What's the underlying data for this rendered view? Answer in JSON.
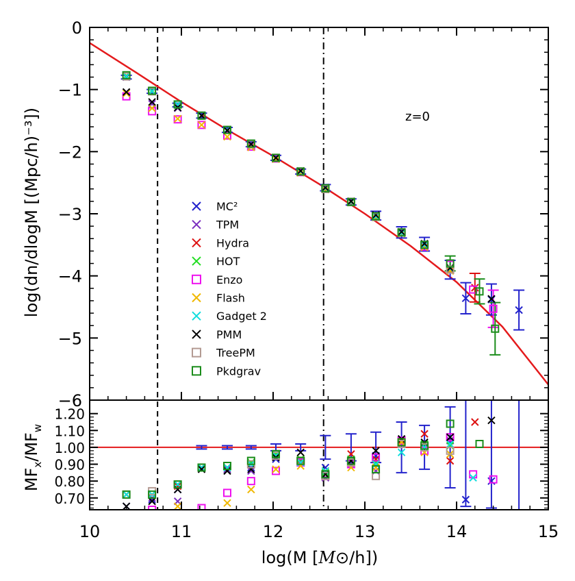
{
  "chart_data": [
    {
      "panel": "top",
      "type": "scatter",
      "title": "",
      "annotation": "z=0",
      "xlabel_parts": [
        "log(M ",
        "[",
        "M",
        "⊙",
        "/h])"
      ],
      "ylabel": "log(dn/dlogM [(Mpc/h)⁻³])",
      "xlim": [
        10,
        15
      ],
      "ylim": [
        -6,
        0
      ],
      "xticks": [
        "10",
        "11",
        "12",
        "13",
        "14",
        "15"
      ],
      "yticks": [
        "0",
        "−1",
        "−2",
        "−3",
        "−4",
        "−5",
        "−6"
      ],
      "vlines": [
        {
          "x": 10.74,
          "style": "dashed"
        },
        {
          "x": 12.55,
          "style": "dashdot"
        }
      ],
      "fit_curve": {
        "name": "fit",
        "color": "#e41a1c",
        "x": [
          10,
          10.5,
          11,
          11.5,
          12,
          12.5,
          13,
          13.5,
          14,
          14.5,
          15
        ],
        "y": [
          -0.25,
          -0.72,
          -1.2,
          -1.65,
          -2.07,
          -2.52,
          -3.0,
          -3.52,
          -4.1,
          -4.82,
          -5.75
        ]
      },
      "legend": [
        {
          "name": "MC²",
          "marker": "x",
          "color": "#2222cc"
        },
        {
          "name": "TPM",
          "marker": "x",
          "color": "#7b2fbf"
        },
        {
          "name": "Hydra",
          "marker": "x",
          "color": "#dd1111"
        },
        {
          "name": "HOT",
          "marker": "x",
          "color": "#22dd22"
        },
        {
          "name": "Enzo",
          "marker": "square",
          "color": "#ee11ee"
        },
        {
          "name": "Flash",
          "marker": "x",
          "color": "#f0b800"
        },
        {
          "name": "Gadget 2",
          "marker": "x",
          "color": "#11dddd"
        },
        {
          "name": "PMM",
          "marker": "x",
          "color": "#000000"
        },
        {
          "name": "TreePM",
          "marker": "square",
          "color": "#b39a92"
        },
        {
          "name": "Pkdgrav",
          "marker": "square",
          "color": "#1a8c1a"
        }
      ],
      "series": [
        {
          "name": "MC²",
          "x": [
            10.4,
            10.68,
            10.96,
            11.22,
            11.5,
            11.76,
            12.03,
            12.3,
            12.57,
            12.85,
            13.12,
            13.4,
            13.65,
            13.93,
            14.1,
            14.38,
            14.68
          ],
          "y": [
            -0.8,
            -1.03,
            -1.25,
            -1.42,
            -1.65,
            -1.88,
            -2.1,
            -2.32,
            -2.58,
            -2.81,
            -3.03,
            -3.3,
            -3.49,
            -3.9,
            -4.36,
            -4.38,
            -4.55
          ]
        },
        {
          "name": "TPM",
          "x": [
            10.4,
            10.68,
            10.96,
            11.22,
            11.5,
            11.76,
            12.03,
            12.3,
            12.57,
            12.85,
            13.12,
            13.4,
            13.65,
            13.93
          ],
          "y": [
            -1.05,
            -1.23,
            -1.3,
            -1.42,
            -1.66,
            -1.9,
            -2.11,
            -2.33,
            -2.6,
            -2.81,
            -3.04,
            -3.31,
            -3.52,
            -3.88
          ]
        },
        {
          "name": "Hydra",
          "x": [
            10.4,
            10.68,
            10.96,
            11.22,
            11.5,
            11.76,
            12.03,
            12.3,
            12.57,
            12.85,
            13.12,
            13.4,
            13.65,
            13.93,
            14.2
          ],
          "y": [
            -0.78,
            -1.03,
            -1.24,
            -1.42,
            -1.65,
            -1.88,
            -2.1,
            -2.32,
            -2.59,
            -2.8,
            -3.02,
            -3.3,
            -3.5,
            -3.9,
            -4.19
          ]
        },
        {
          "name": "HOT",
          "x": [
            10.4,
            10.68,
            10.96,
            11.22,
            11.5,
            11.76,
            12.03,
            12.3,
            12.57,
            12.85,
            13.12,
            13.4,
            13.65,
            13.93
          ],
          "y": [
            -0.78,
            -1.02,
            -1.24,
            -1.42,
            -1.65,
            -1.88,
            -2.1,
            -2.32,
            -2.59,
            -2.81,
            -3.03,
            -3.31,
            -3.5,
            -3.88
          ]
        },
        {
          "name": "Enzo",
          "x": [
            10.4,
            10.68,
            10.96,
            11.22,
            11.5,
            11.76,
            12.03,
            12.3,
            12.57,
            12.85,
            13.12,
            13.4,
            13.65,
            13.93,
            14.18,
            14.4
          ],
          "y": [
            -1.11,
            -1.35,
            -1.48,
            -1.57,
            -1.74,
            -1.92,
            -2.11,
            -2.33,
            -2.6,
            -2.81,
            -3.04,
            -3.3,
            -3.53,
            -3.82,
            -4.22,
            -4.53
          ]
        },
        {
          "name": "Flash",
          "x": [
            10.4,
            10.68,
            10.96,
            11.22,
            11.5,
            11.76,
            12.03,
            12.3,
            12.57,
            12.85,
            13.12,
            13.4,
            13.65,
            13.93
          ],
          "y": [
            -1.06,
            -1.3,
            -1.47,
            -1.57,
            -1.76,
            -1.93,
            -2.12,
            -2.34,
            -2.61,
            -2.82,
            -3.06,
            -3.32,
            -3.54,
            -3.92
          ]
        },
        {
          "name": "Gadget 2",
          "x": [
            10.4,
            10.68,
            10.96,
            11.22,
            11.5,
            11.76,
            12.03,
            12.3,
            12.57,
            12.85,
            13.12,
            13.4,
            13.65,
            13.93
          ],
          "y": [
            -0.79,
            -1.03,
            -1.24,
            -1.42,
            -1.65,
            -1.88,
            -2.1,
            -2.32,
            -2.59,
            -2.81,
            -3.04,
            -3.31,
            -3.5,
            -3.88
          ]
        },
        {
          "name": "PMM",
          "x": [
            10.4,
            10.68,
            10.96,
            11.22,
            11.5,
            11.76,
            12.03,
            12.3,
            12.57,
            12.85,
            13.12,
            13.4,
            13.65,
            13.93,
            14.38
          ],
          "y": [
            -1.04,
            -1.2,
            -1.29,
            -1.42,
            -1.66,
            -1.88,
            -2.1,
            -2.31,
            -2.58,
            -2.8,
            -3.02,
            -3.29,
            -3.48,
            -3.87,
            -4.37
          ]
        },
        {
          "name": "TreePM",
          "x": [
            10.4,
            10.68,
            10.96,
            11.22,
            11.5,
            11.76,
            12.03,
            12.3,
            12.57,
            12.85,
            13.12,
            13.4,
            13.65,
            13.93
          ],
          "y": [
            -0.79,
            -1.03,
            -1.24,
            -1.42,
            -1.65,
            -1.88,
            -2.1,
            -2.32,
            -2.6,
            -2.81,
            -3.05,
            -3.3,
            -3.5,
            -3.9
          ]
        },
        {
          "name": "Pkdgrav",
          "x": [
            10.4,
            10.68,
            10.96,
            11.22,
            11.5,
            11.76,
            12.03,
            12.3,
            12.57,
            12.85,
            13.12,
            13.4,
            13.65,
            13.93,
            14.25,
            14.42
          ],
          "y": [
            -0.77,
            -1.02,
            -1.24,
            -1.42,
            -1.65,
            -1.87,
            -2.1,
            -2.32,
            -2.59,
            -2.81,
            -3.04,
            -3.3,
            -3.5,
            -3.8,
            -4.25,
            -4.85
          ]
        }
      ],
      "error_bars": [
        {
          "series": "MC²",
          "color": "#2222cc",
          "x": [
            10.4,
            10.68,
            10.96,
            11.22,
            11.5,
            11.76,
            12.03,
            12.3,
            12.57,
            12.85,
            13.12,
            13.4,
            13.65,
            13.93,
            14.1,
            14.38,
            14.68
          ],
          "y": [
            -0.8,
            -1.03,
            -1.25,
            -1.42,
            -1.65,
            -1.88,
            -2.1,
            -2.32,
            -2.58,
            -2.81,
            -3.03,
            -3.3,
            -3.49,
            -3.9,
            -4.36,
            -4.38,
            -4.55
          ],
          "err": [
            0.03,
            0.03,
            0.03,
            0.04,
            0.04,
            0.04,
            0.04,
            0.04,
            0.05,
            0.05,
            0.07,
            0.09,
            0.11,
            0.15,
            0.25,
            0.25,
            0.32
          ]
        },
        {
          "series": "Hydra",
          "color": "#dd1111",
          "x": [
            14.2
          ],
          "y": [
            -4.19
          ],
          "err": [
            0.23
          ]
        },
        {
          "series": "Enzo",
          "color": "#ee11ee",
          "x": [
            14.4
          ],
          "y": [
            -4.53
          ],
          "err": [
            0.3
          ]
        },
        {
          "series": "Pkdgrav",
          "color": "#1a8c1a",
          "x": [
            13.93,
            14.25,
            14.42
          ],
          "y": [
            -3.8,
            -4.25,
            -4.85
          ],
          "err": [
            0.12,
            0.2,
            0.42
          ]
        }
      ]
    },
    {
      "panel": "bottom",
      "type": "scatter",
      "ylabel_parts": {
        "main1": "MF",
        "sub1": "x",
        "slash": "/",
        "main2": "MF",
        "sub2": "w"
      },
      "xlim": [
        10,
        15
      ],
      "ylim": [
        0.63,
        1.28
      ],
      "yticks": [
        "0.70",
        "0.80",
        "0.90",
        "1.00",
        "1.10",
        "1.20"
      ],
      "hline": {
        "y": 1.0,
        "color": "#e41a1c"
      },
      "series": [
        {
          "name": "MC²",
          "x": [
            10.4,
            10.68,
            10.96,
            11.22,
            11.5,
            11.76,
            12.03,
            12.3,
            12.57,
            12.85,
            13.12,
            13.4,
            13.65,
            13.93,
            14.1,
            14.38
          ],
          "y": [
            0.65,
            0.69,
            0.75,
            0.88,
            0.87,
            0.88,
            0.93,
            0.92,
            0.88,
            0.91,
            0.95,
            1.03,
            1.0,
            1.04,
            0.69,
            0.8
          ]
        },
        {
          "name": "TPM",
          "x": [
            10.68,
            10.96,
            11.22,
            11.5,
            11.76,
            12.03,
            12.3,
            12.57,
            12.85,
            13.12,
            13.4,
            13.65,
            13.93
          ],
          "y": [
            0.7,
            0.68,
            0.88,
            0.87,
            0.86,
            0.94,
            0.92,
            0.82,
            0.9,
            0.86,
            1.02,
            1.0,
            1.04
          ]
        },
        {
          "name": "Hydra",
          "x": [
            10.4,
            10.68,
            10.96,
            11.22,
            11.5,
            11.76,
            12.03,
            12.3,
            12.57,
            12.85,
            13.12,
            13.4,
            13.65,
            13.93,
            14.2
          ],
          "y": [
            0.72,
            0.72,
            0.77,
            0.88,
            0.88,
            0.9,
            0.95,
            0.93,
            0.84,
            0.96,
            0.93,
            1.04,
            1.08,
            0.92,
            1.15
          ]
        },
        {
          "name": "HOT",
          "x": [
            10.4,
            10.68,
            10.96,
            11.22,
            11.5,
            11.76,
            12.03,
            12.3,
            12.57,
            12.85,
            13.12,
            13.4,
            13.65,
            13.93
          ],
          "y": [
            0.72,
            0.72,
            0.78,
            0.88,
            0.88,
            0.91,
            0.96,
            0.93,
            0.85,
            0.93,
            0.91,
            1.03,
            1.02,
            1.01
          ]
        },
        {
          "name": "Enzo",
          "x": [
            10.68,
            11.22,
            11.5,
            11.76,
            12.03,
            12.3,
            12.57,
            12.85,
            13.12,
            13.4,
            13.65,
            13.93,
            14.18,
            14.4
          ],
          "y": [
            0.63,
            0.64,
            0.73,
            0.8,
            0.86,
            0.91,
            0.83,
            0.9,
            0.94,
            1.04,
            0.98,
            1.06,
            0.84,
            0.81
          ]
        },
        {
          "name": "Flash",
          "x": [
            10.96,
            11.5,
            11.76,
            12.03,
            12.3,
            12.57,
            12.85,
            13.12,
            13.4,
            13.65,
            13.93
          ],
          "y": [
            0.65,
            0.67,
            0.75,
            0.87,
            0.89,
            0.86,
            0.88,
            0.88,
            1.03,
            0.97,
            0.96
          ]
        },
        {
          "name": "Gadget 2",
          "x": [
            10.4,
            10.68,
            10.96,
            11.22,
            11.5,
            11.76,
            12.03,
            12.3,
            12.57,
            12.85,
            13.12,
            13.4,
            13.65,
            13.93,
            14.18
          ],
          "y": [
            0.72,
            0.72,
            0.78,
            0.88,
            0.88,
            0.9,
            0.95,
            0.91,
            0.86,
            0.92,
            0.9,
            0.97,
            1.0,
            1.02,
            0.82
          ]
        },
        {
          "name": "PMM",
          "x": [
            10.4,
            10.68,
            10.96,
            11.22,
            11.5,
            11.76,
            12.03,
            12.3,
            12.57,
            12.85,
            13.12,
            13.4,
            13.65,
            13.93,
            14.38
          ],
          "y": [
            0.65,
            0.68,
            0.75,
            0.87,
            0.86,
            0.87,
            0.94,
            0.97,
            0.84,
            0.92,
            0.98,
            1.05,
            1.03,
            1.06,
            1.16
          ]
        },
        {
          "name": "TreePM",
          "x": [
            10.4,
            10.68,
            10.96,
            11.22,
            11.5,
            11.76,
            12.03,
            12.3,
            12.57,
            12.85,
            13.12,
            13.4,
            13.65,
            13.93
          ],
          "y": [
            0.72,
            0.74,
            0.78,
            0.88,
            0.89,
            0.9,
            0.95,
            0.92,
            0.83,
            0.91,
            0.83,
            1.02,
            1.0,
            0.98
          ]
        },
        {
          "name": "Pkdgrav",
          "x": [
            10.4,
            10.68,
            10.96,
            11.22,
            11.5,
            11.76,
            12.03,
            12.3,
            12.57,
            12.85,
            13.12,
            13.4,
            13.65,
            13.93,
            14.25
          ],
          "y": [
            0.72,
            0.72,
            0.78,
            0.88,
            0.89,
            0.92,
            0.96,
            0.92,
            0.84,
            0.92,
            0.87,
            1.03,
            1.01,
            1.14,
            1.02
          ]
        }
      ],
      "error_bars": [
        {
          "series": "MC²",
          "color": "#2222cc",
          "x": [
            10.4,
            10.68,
            10.96,
            11.22,
            11.5,
            11.76,
            12.03,
            12.3,
            12.57,
            12.85,
            13.12,
            13.4,
            13.65,
            13.93,
            14.1,
            14.38,
            14.68
          ],
          "center": [
            1.0,
            1.0,
            1.0,
            1.0,
            1.0,
            1.0,
            1.0,
            1.0,
            1.0,
            1.0,
            1.0,
            1.0,
            1.0,
            1.0,
            1.0,
            1.0,
            1.0
          ],
          "err": [
            0.0,
            0.0,
            0.0,
            0.01,
            0.01,
            0.01,
            0.02,
            0.02,
            0.07,
            0.08,
            0.09,
            0.15,
            0.13,
            0.24,
            0.35,
            0.36,
            0.5
          ]
        }
      ]
    }
  ]
}
